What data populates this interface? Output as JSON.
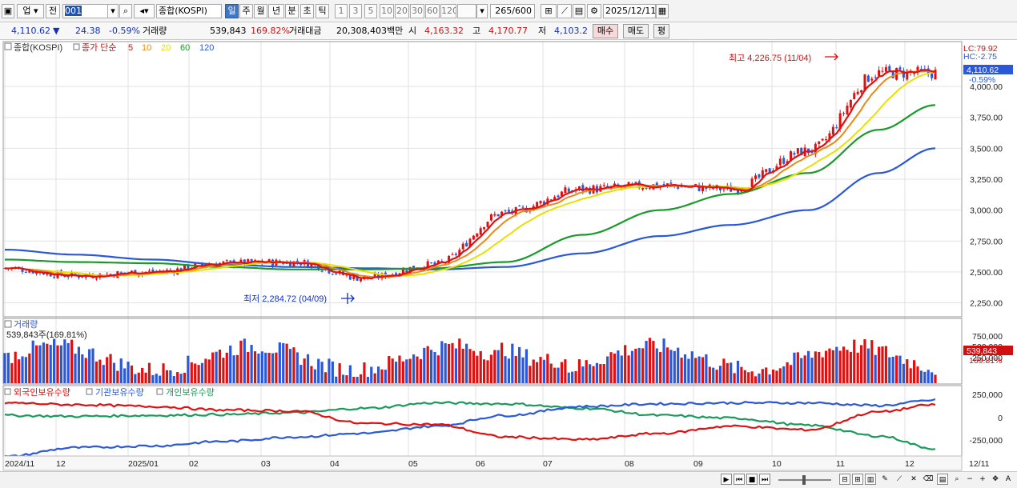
{
  "toolbar": {
    "market": "업",
    "prev": "전",
    "code": "001",
    "name": "종합(KOSPI)",
    "periods": [
      "일",
      "주",
      "월",
      "년",
      "분",
      "초",
      "틱"
    ],
    "active_period": "일",
    "minutes": [
      "1",
      "3",
      "5",
      "10",
      "20",
      "30",
      "60",
      "120"
    ],
    "count": "265",
    "count_total": "/600",
    "date": "2025/12/11"
  },
  "info": {
    "price": "4,110.62",
    "change_arrow": "▼",
    "change": "24.38",
    "change_pct": "-0.59%",
    "volume_label": "거래량",
    "volume": "539,843",
    "volume_pct": "169.82%",
    "amount_label": "거래대금",
    "amount": "20,308,403백만",
    "open_label": "시",
    "open": "4,163.32",
    "high_label": "고",
    "high": "4,170.77",
    "low_label": "저",
    "low": "4,103.2",
    "buy": "매수",
    "sell": "매도",
    "eval": "평"
  },
  "price_panel": {
    "legend_name": "종합(KOSPI)",
    "legend_ma": "종가 단순",
    "ma": [
      {
        "label": "5",
        "color": "#e01010"
      },
      {
        "label": "10",
        "color": "#e88a1a"
      },
      {
        "label": "20",
        "color": "#e8e000"
      },
      {
        "label": "60",
        "color": "#1a9a2a"
      },
      {
        "label": "120",
        "color": "#2a58d8"
      }
    ],
    "lc": "LC:79.92",
    "hc": "HC:-2.75",
    "last_price": "4,110.62",
    "last_pct": "-0.59%",
    "max_label": "최고 4,226.75 (11/04)",
    "min_label": "최저 2,284.72 (04/09)",
    "yticks": [
      "4,000.00",
      "3,750.00",
      "3,500.00",
      "3,250.00",
      "3,000.00",
      "2,750.00",
      "2,500.00",
      "2,250.00"
    ]
  },
  "volume_panel": {
    "title": "거래량",
    "value": "539,843주(169.81%)",
    "yticks": [
      "750,000",
      "500,000",
      "250,000"
    ],
    "last_value": "539,843",
    "last_pct": "169.81%"
  },
  "holding_panel": {
    "legends": [
      {
        "label": "외국인보유수량",
        "color": "#e01010"
      },
      {
        "label": "기관보유수량",
        "color": "#2a58d8"
      },
      {
        "label": "개인보유수량",
        "color": "#1a9a5a"
      }
    ],
    "yticks": [
      "250,000",
      "0",
      "-250,000"
    ]
  },
  "xaxis": {
    "labels": [
      "2024/11",
      "12",
      "2025/01",
      "02",
      "03",
      "04",
      "05",
      "06",
      "07",
      "08",
      "09",
      "10",
      "11",
      "12"
    ],
    "right_label": "12/11"
  },
  "colors": {
    "up": "#e01010",
    "down": "#2a58d8",
    "ma5": "#e01010",
    "ma10": "#e88a1a",
    "ma20": "#e8e000",
    "ma60": "#1a9a2a",
    "ma120": "#2a58d8",
    "foreign": "#e01010",
    "inst": "#2a58d8",
    "retail": "#1a9a5a"
  },
  "chart_data": {
    "type": "line",
    "title": "종합(KOSPI)",
    "x": [
      "2024/11",
      "2024/12",
      "2025/01",
      "2025/02",
      "2025/03",
      "2025/04",
      "2025/05",
      "2025/06",
      "2025/07",
      "2025/08",
      "2025/09",
      "2025/10",
      "2025/11",
      "2025/12/11"
    ],
    "series": [
      {
        "name": "종가",
        "values": [
          2530,
          2470,
          2500,
          2570,
          2580,
          2450,
          2560,
          2980,
          3170,
          3200,
          3170,
          3480,
          4110,
          4110.62
        ]
      },
      {
        "name": "5",
        "values": [
          2520,
          2460,
          2510,
          2560,
          2600,
          2380,
          2550,
          2900,
          3140,
          3210,
          3150,
          3500,
          4150,
          4120
        ]
      },
      {
        "name": "60",
        "values": [
          2600,
          2580,
          2570,
          2540,
          2520,
          2520,
          2530,
          2580,
          2800,
          3000,
          3130,
          3300,
          3650,
          3850
        ]
      },
      {
        "name": "120",
        "values": [
          2680,
          2640,
          2600,
          2560,
          2540,
          2530,
          2520,
          2540,
          2650,
          2790,
          2880,
          3000,
          3300,
          3500
        ]
      }
    ],
    "max": {
      "value": 4226.75,
      "date": "11/04"
    },
    "min": {
      "value": 2284.72,
      "date": "04/09"
    },
    "ylim": [
      2150,
      4350
    ]
  }
}
